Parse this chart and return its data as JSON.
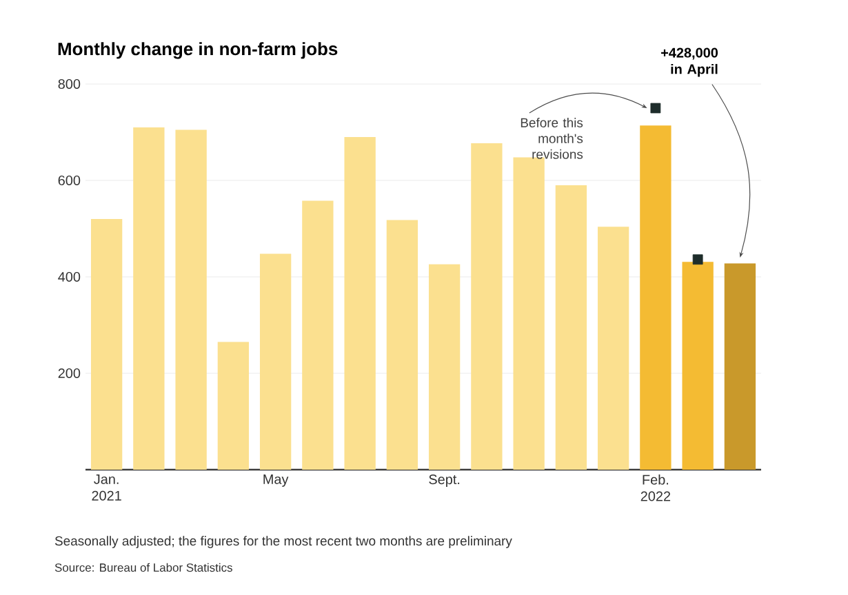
{
  "chart_data": {
    "type": "bar",
    "title": "Monthly change in non-farm jobs",
    "categories": [
      "Jan. 2021",
      null,
      null,
      null,
      "May",
      null,
      null,
      null,
      "Sept.",
      null,
      null,
      null,
      null,
      "Feb. 2022",
      null,
      null
    ],
    "series": [
      {
        "colors": [
          "#fbe08f",
          "#fbe08f",
          "#fbe08f",
          "#fbe08f",
          "#fbe08f",
          "#fbe08f",
          "#fbe08f",
          "#fbe08f",
          "#fbe08f",
          "#fbe08f",
          "#fbe08f",
          "#fbe08f",
          "#fbe08f",
          "#f4bb33",
          "#f4bb33",
          "#c9992b"
        ],
        "values": [
          520,
          710,
          705,
          265,
          448,
          558,
          690,
          518,
          426,
          677,
          648,
          590,
          504,
          714,
          431,
          428
        ]
      },
      {
        "type": "scatter",
        "marker": "square",
        "color": "#1e2d2b",
        "values": [
          null,
          null,
          null,
          null,
          null,
          null,
          null,
          null,
          null,
          null,
          null,
          null,
          null,
          750,
          436,
          null
        ]
      }
    ],
    "ylim": [
      0,
      800
    ],
    "yticks": [
      200,
      400,
      600,
      800
    ],
    "grid": "y",
    "annotations": [
      {
        "text": "Before this month's revisions",
        "x": "Feb. 2022",
        "y": 750
      },
      "+428,000 in April",
      "Seasonally adjusted; the figures for the most recent two months are preliminary",
      "Source: Bureau of Labor Statistics"
    ]
  }
}
